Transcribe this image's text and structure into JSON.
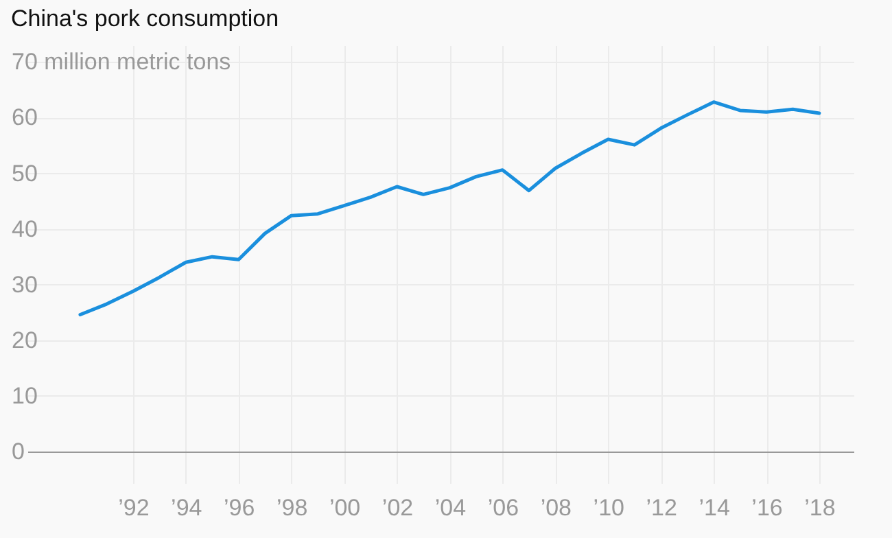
{
  "chart_data": {
    "type": "line",
    "title": "China's pork consumption",
    "x": [
      1990,
      1991,
      1992,
      1993,
      1994,
      1995,
      1996,
      1997,
      1998,
      1999,
      2000,
      2001,
      2002,
      2003,
      2004,
      2005,
      2006,
      2007,
      2008,
      2009,
      2010,
      2011,
      2012,
      2013,
      2014,
      2015,
      2016,
      2017,
      2018
    ],
    "series": [
      {
        "color": "#1a8fdd",
        "values": [
          24.6,
          26.5,
          28.8,
          31.3,
          34.0,
          35.0,
          34.5,
          39.2,
          42.4,
          42.7,
          44.2,
          45.7,
          47.6,
          46.2,
          47.4,
          49.4,
          50.6,
          46.9,
          50.9,
          53.6,
          56.1,
          55.1,
          58.1,
          60.5,
          62.8,
          61.3,
          61.0,
          61.5,
          60.8
        ]
      }
    ],
    "xlim": [
      1988,
      2019.3
    ],
    "xticks": [
      {
        "value": 1992,
        "label": "’92"
      },
      {
        "value": 1994,
        "label": "’94"
      },
      {
        "value": 1996,
        "label": "’96"
      },
      {
        "value": 1998,
        "label": "’98"
      },
      {
        "value": 2000,
        "label": "’00"
      },
      {
        "value": 2002,
        "label": "’02"
      },
      {
        "value": 2004,
        "label": "’04"
      },
      {
        "value": 2006,
        "label": "’06"
      },
      {
        "value": 2008,
        "label": "’08"
      },
      {
        "value": 2010,
        "label": "’10"
      },
      {
        "value": 2012,
        "label": "’12"
      },
      {
        "value": 2014,
        "label": "’14"
      },
      {
        "value": 2016,
        "label": "’16"
      },
      {
        "value": 2018,
        "label": "’18"
      }
    ],
    "ylim": [
      0,
      73
    ],
    "yticks": [
      0,
      10,
      20,
      30,
      40,
      50,
      60,
      {
        "value": 70,
        "label": "70 million metric tons"
      }
    ],
    "grid": true,
    "marker": "none",
    "line_style": "solid"
  }
}
